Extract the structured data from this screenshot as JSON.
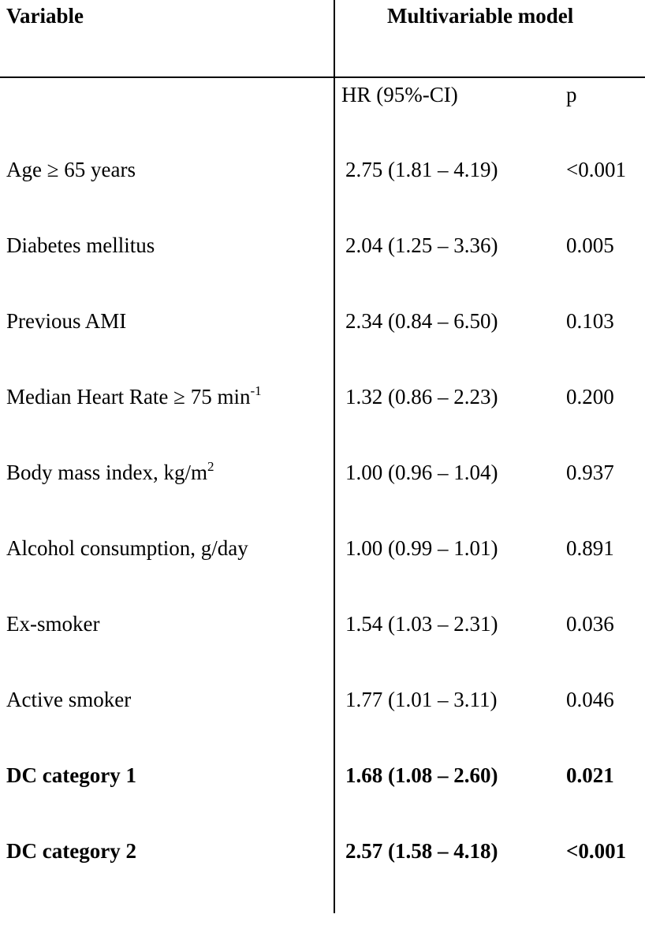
{
  "header": {
    "variable": "Variable",
    "model": "Multivariable model",
    "hr_col": "HR (95%-CI)",
    "p_col": "p"
  },
  "rows": [
    {
      "variable": "Age ≥ 65 years",
      "hr": "2.75 (1.81 – 4.19)",
      "p": "<0.001",
      "bold": false
    },
    {
      "variable": "Diabetes mellitus",
      "hr": "2.04 (1.25 – 3.36)",
      "p": "0.005",
      "bold": false
    },
    {
      "variable": "Previous AMI",
      "hr": "2.34 (0.84 – 6.50)",
      "p": "0.103",
      "bold": false
    },
    {
      "variable": "Median Heart Rate ≥ 75 min",
      "sup": "-1",
      "hr": "1.32 (0.86 – 2.23)",
      "p": "0.200",
      "bold": false
    },
    {
      "variable": "Body mass index, kg/m",
      "sup": "2",
      "hr": "1.00 (0.96 – 1.04)",
      "p": "0.937",
      "bold": false
    },
    {
      "variable": "Alcohol consumption, g/day",
      "hr": "1.00 (0.99 – 1.01)",
      "p": "0.891",
      "bold": false
    },
    {
      "variable": "Ex-smoker",
      "hr": "1.54 (1.03 – 2.31)",
      "p": "0.036",
      "bold": false
    },
    {
      "variable": "Active smoker",
      "hr": "1.77 (1.01 – 3.11)",
      "p": "0.046",
      "bold": false
    },
    {
      "variable": "DC category 1",
      "hr": "1.68 (1.08 – 2.60)",
      "p": "0.021",
      "bold": true
    },
    {
      "variable": "DC category 2",
      "hr": "2.57 (1.58 – 4.18)",
      "p": "<0.001",
      "bold": true
    }
  ]
}
